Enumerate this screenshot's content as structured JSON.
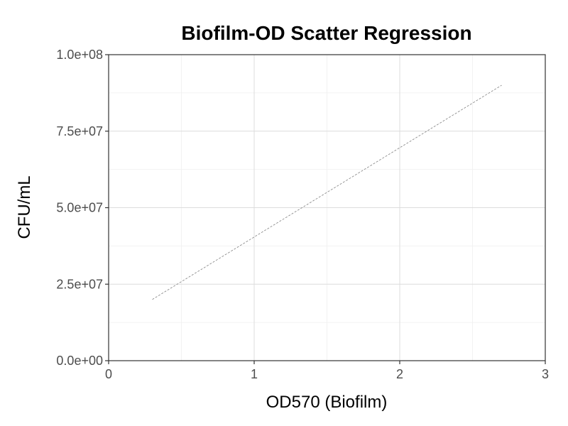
{
  "chart_data": {
    "type": "scatter",
    "title": "Biofilm-OD Scatter Regression",
    "xlabel": "OD570 (Biofilm)",
    "ylabel": "CFU/mL",
    "xlim": [
      0,
      3
    ],
    "ylim": [
      0,
      100000000
    ],
    "x_ticks": [
      0,
      1,
      2,
      3
    ],
    "x_tick_labels": [
      "0",
      "1",
      "2",
      "3"
    ],
    "y_ticks": [
      0,
      25000000,
      50000000,
      75000000,
      100000000
    ],
    "y_tick_labels": [
      "0.0e+00",
      "2.5e+07",
      "5.0e+07",
      "7.5e+07",
      "1.0e+08"
    ],
    "x_minor_grid": [
      0.5,
      1.5,
      2.5
    ],
    "y_minor_grid": [
      12500000,
      37500000,
      62500000,
      87500000
    ],
    "grid": true,
    "points": [],
    "regression_line": {
      "x": [
        0.3,
        2.7
      ],
      "y": [
        20000000,
        90000000
      ],
      "style": "dashed",
      "color": "#808080"
    },
    "colors": {
      "grid_major": "#dcdcdc",
      "grid_minor": "#efefef",
      "frame": "#333333",
      "tick_text": "#4d4d4d"
    }
  }
}
